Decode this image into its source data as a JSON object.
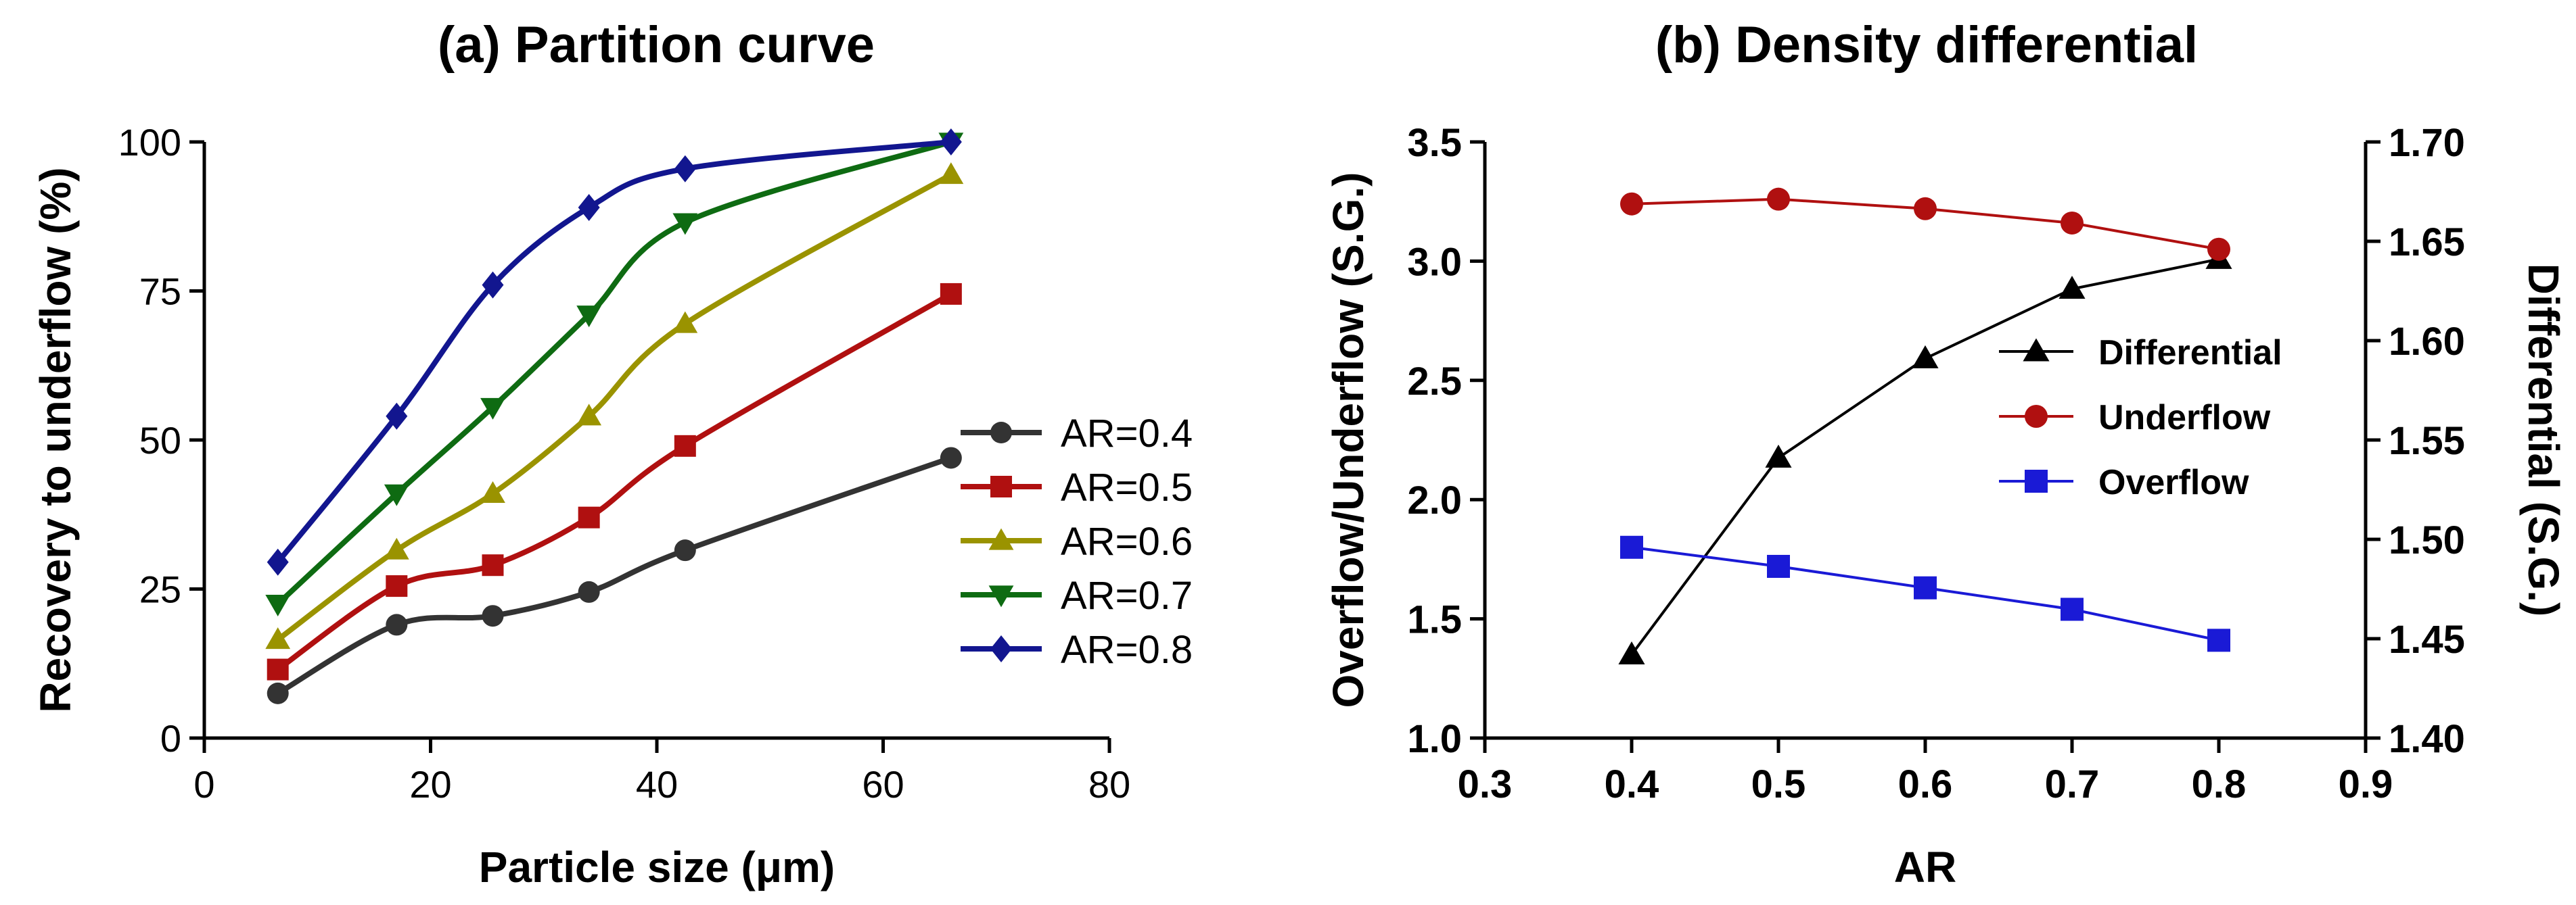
{
  "chart_data": [
    {
      "type": "line",
      "title": "(a) Partition curve",
      "xlabel": "Particle size (μm)",
      "ylabel": "Recovery to underflow (%)",
      "xlim": [
        0,
        80
      ],
      "ylim": [
        0,
        100
      ],
      "xticks": [
        "0",
        "20",
        "40",
        "60",
        "80"
      ],
      "yticks": [
        "0",
        "25",
        "50",
        "75",
        "100"
      ],
      "x": [
        6.5,
        17,
        25.5,
        34,
        42.5,
        66
      ],
      "grid": false,
      "legend_position": "lower-right",
      "series": [
        {
          "name": "AR=0.4",
          "color": "#333333",
          "marker": "circle",
          "values": [
            7.5,
            19,
            20.5,
            24.5,
            31.5,
            47
          ]
        },
        {
          "name": "AR=0.5",
          "color": "#b01010",
          "marker": "square",
          "values": [
            11.5,
            25.5,
            29,
            37,
            49,
            74.5
          ]
        },
        {
          "name": "AR=0.6",
          "color": "#9a9300",
          "marker": "triangle-up",
          "values": [
            16.5,
            31.5,
            41,
            54,
            69.5,
            94.5
          ]
        },
        {
          "name": "AR=0.7",
          "color": "#0e6b12",
          "marker": "triangle-down",
          "values": [
            22.5,
            41,
            55.5,
            71,
            86.5,
            100
          ]
        },
        {
          "name": "AR=0.8",
          "color": "#12168f",
          "marker": "diamond",
          "values": [
            29.5,
            54,
            76,
            89,
            95.5,
            100
          ]
        }
      ]
    },
    {
      "type": "line",
      "title": "(b) Density differential",
      "xlabel": "AR",
      "ylabel": "Overflow/Underflow (S.G.)",
      "y2label": "Differential (S.G.)",
      "xlim": [
        0.3,
        0.9
      ],
      "ylim": [
        1.0,
        3.5
      ],
      "y2lim": [
        1.4,
        1.7
      ],
      "xticks": [
        "0.3",
        "0.4",
        "0.5",
        "0.6",
        "0.7",
        "0.8",
        "0.9"
      ],
      "yticks": [
        "1.0",
        "1.5",
        "2.0",
        "2.5",
        "3.0",
        "3.5"
      ],
      "y2ticks": [
        "1.40",
        "1.45",
        "1.50",
        "1.55",
        "1.60",
        "1.65",
        "1.70"
      ],
      "x": [
        0.4,
        0.5,
        0.6,
        0.7,
        0.8
      ],
      "grid": false,
      "legend_position": "center-right",
      "series": [
        {
          "name": "Differential",
          "axis": "right",
          "color": "#000000",
          "marker": "triangle-up",
          "values": [
            1.442,
            1.541,
            1.591,
            1.626,
            1.641
          ]
        },
        {
          "name": "Underflow",
          "axis": "left",
          "color": "#b01010",
          "marker": "circle",
          "values": [
            3.24,
            3.26,
            3.22,
            3.16,
            3.05
          ]
        },
        {
          "name": "Overflow",
          "axis": "left",
          "color": "#1a1ad6",
          "marker": "square",
          "values": [
            1.8,
            1.72,
            1.63,
            1.54,
            1.41
          ]
        }
      ]
    }
  ]
}
